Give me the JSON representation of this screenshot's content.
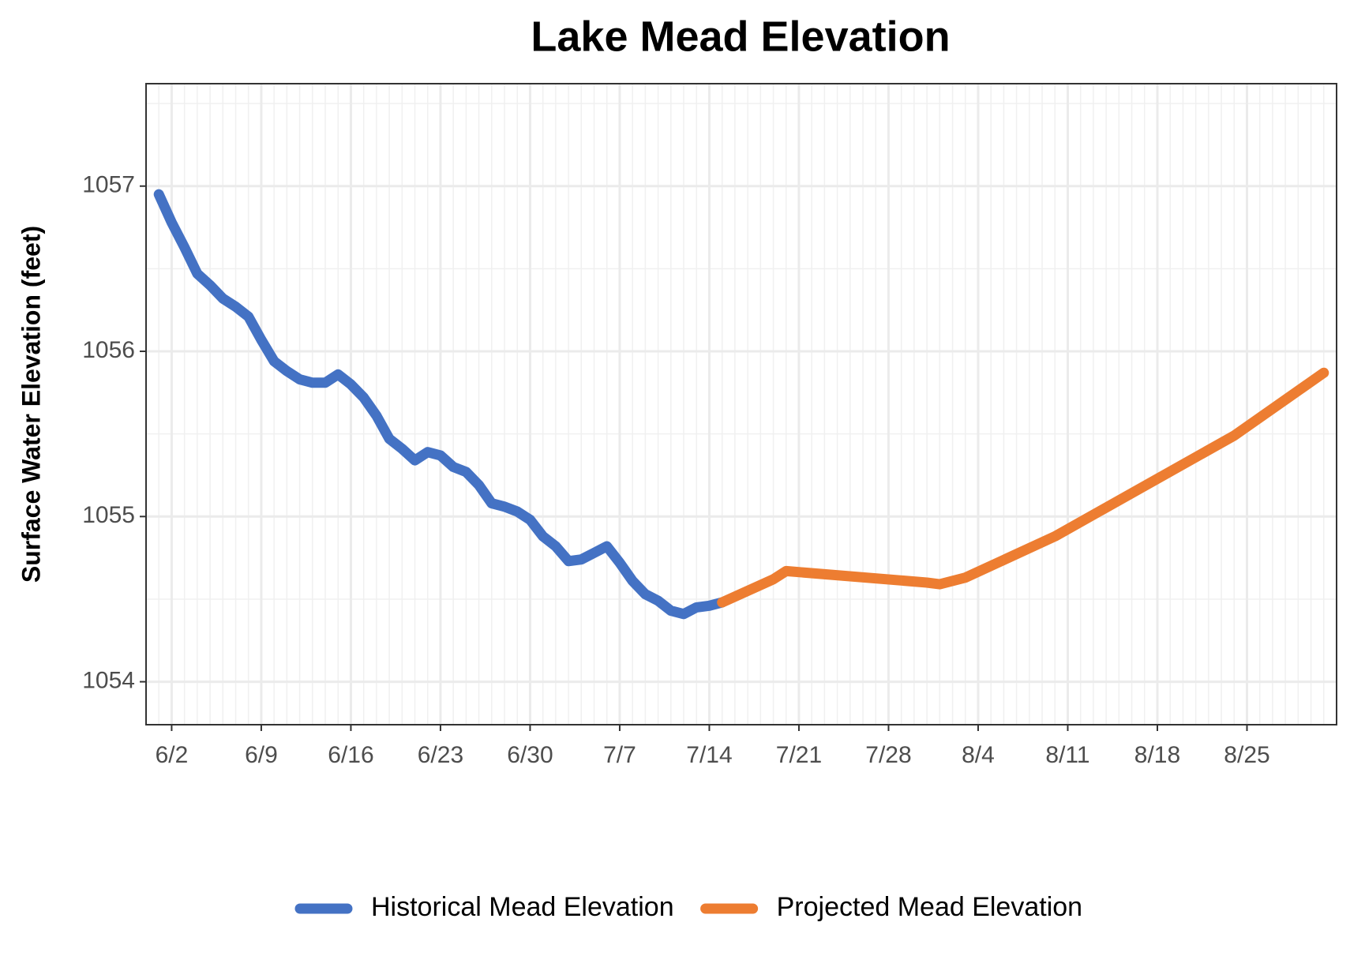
{
  "chart_data": {
    "type": "line",
    "title": "Lake Mead Elevation",
    "y_label": "Surface Water Elevation (feet)",
    "xlim": [
      "5/31",
      "9/1"
    ],
    "xticks": [
      "6/2",
      "6/9",
      "6/16",
      "6/23",
      "6/30",
      "7/7",
      "7/14",
      "7/21",
      "7/28",
      "8/4",
      "8/11",
      "8/18",
      "8/25"
    ],
    "ylim": [
      1053.74,
      1057.62
    ],
    "yticks": [
      1054,
      1055,
      1056,
      1057
    ],
    "grid": true,
    "legend": "bottom",
    "series": [
      {
        "name": "Historical Mead Elevation",
        "color": "#4472c4",
        "x": [
          "6/1",
          "6/2",
          "6/3",
          "6/4",
          "6/5",
          "6/6",
          "6/7",
          "6/8",
          "6/9",
          "6/10",
          "6/11",
          "6/12",
          "6/13",
          "6/14",
          "6/15",
          "6/16",
          "6/17",
          "6/18",
          "6/19",
          "6/20",
          "6/21",
          "6/22",
          "6/23",
          "6/24",
          "6/25",
          "6/26",
          "6/27",
          "6/28",
          "6/29",
          "6/30",
          "7/1",
          "7/2",
          "7/3",
          "7/4",
          "7/5",
          "7/6",
          "7/7",
          "7/8",
          "7/9",
          "7/10",
          "7/11",
          "7/12",
          "7/13",
          "7/14",
          "7/15"
        ],
        "values": [
          1056.95,
          1056.78,
          1056.63,
          1056.47,
          1056.4,
          1056.32,
          1056.27,
          1056.21,
          1056.07,
          1055.94,
          1055.88,
          1055.83,
          1055.81,
          1055.81,
          1055.86,
          1055.8,
          1055.72,
          1055.61,
          1055.47,
          1055.41,
          1055.34,
          1055.39,
          1055.37,
          1055.3,
          1055.27,
          1055.19,
          1055.08,
          1055.06,
          1055.03,
          1054.98,
          1054.88,
          1054.82,
          1054.73,
          1054.74,
          1054.78,
          1054.82,
          1054.72,
          1054.61,
          1054.53,
          1054.49,
          1054.43,
          1054.41,
          1054.45,
          1054.46,
          1054.48
        ]
      },
      {
        "name": "Projected Mead Elevation",
        "color": "#ed7d31",
        "x": [
          "7/15",
          "7/19",
          "7/20",
          "7/31",
          "8/1",
          "8/3",
          "8/10",
          "8/24",
          "8/31"
        ],
        "values": [
          1054.48,
          1054.62,
          1054.67,
          1054.6,
          1054.59,
          1054.63,
          1054.88,
          1055.49,
          1055.87
        ]
      }
    ]
  }
}
